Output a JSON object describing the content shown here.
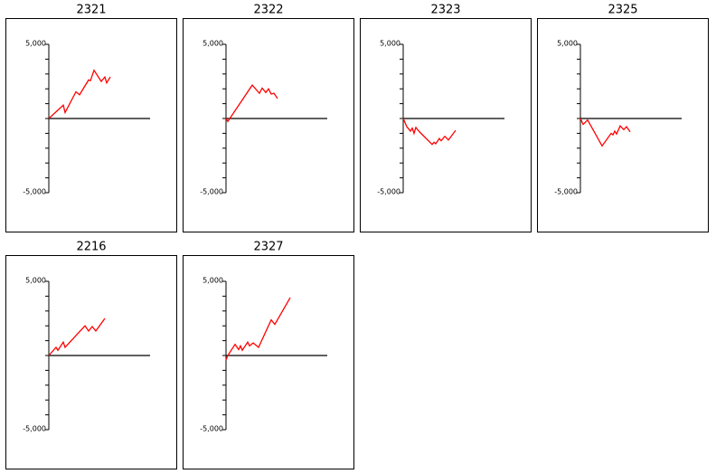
{
  "chart_data": [
    {
      "type": "line",
      "title": "2321",
      "xlim": [
        0,
        112
      ],
      "ylim": [
        -5000,
        5000
      ],
      "yticks": [
        {
          "value": -5000,
          "label": "-5,000"
        },
        {
          "value": 5000,
          "label": "5,000"
        }
      ],
      "yminor_ticks": [
        -4000,
        -3000,
        -2000,
        -1000,
        0,
        1000,
        2000,
        3000,
        4000
      ],
      "series": [
        {
          "color": "#ff0000",
          "x": [
            0,
            16,
            18,
            30,
            34,
            44,
            46,
            50,
            58,
            62,
            64,
            68
          ],
          "values": [
            0,
            900,
            400,
            1800,
            1600,
            2600,
            2550,
            3250,
            2500,
            2800,
            2400,
            2800
          ]
        }
      ]
    },
    {
      "type": "line",
      "title": "2322",
      "xlim": [
        0,
        112
      ],
      "ylim": [
        -5000,
        5000
      ],
      "yticks": [
        {
          "value": -5000,
          "label": "-5,000"
        },
        {
          "value": 5000,
          "label": "5,000"
        }
      ],
      "yminor_ticks": [
        -4000,
        -3000,
        -2000,
        -1000,
        0,
        1000,
        2000,
        3000,
        4000
      ],
      "series": [
        {
          "color": "#ff0000",
          "x": [
            0,
            2,
            29,
            37,
            40,
            44,
            47,
            50,
            53,
            57
          ],
          "values": [
            0,
            -200,
            2250,
            1700,
            2050,
            1750,
            2000,
            1650,
            1700,
            1350
          ]
        }
      ]
    },
    {
      "type": "line",
      "title": "2323",
      "xlim": [
        0,
        112
      ],
      "ylim": [
        -5000,
        5000
      ],
      "yticks": [
        {
          "value": -5000,
          "label": "-5,000"
        },
        {
          "value": 5000,
          "label": "5,000"
        }
      ],
      "yminor_ticks": [
        -4000,
        -3000,
        -2000,
        -1000,
        0,
        1000,
        2000,
        3000,
        4000
      ],
      "series": [
        {
          "color": "#ff0000",
          "x": [
            0,
            4,
            8,
            10,
            12,
            14,
            18,
            32,
            34,
            36,
            40,
            42,
            46,
            50,
            58
          ],
          "values": [
            0,
            -550,
            -850,
            -650,
            -1000,
            -600,
            -900,
            -1750,
            -1600,
            -1700,
            -1350,
            -1500,
            -1200,
            -1450,
            -800
          ]
        }
      ]
    },
    {
      "type": "line",
      "title": "2325",
      "xlim": [
        0,
        112
      ],
      "ylim": [
        -5000,
        5000
      ],
      "yticks": [
        {
          "value": -5000,
          "label": "-5,000"
        },
        {
          "value": 5000,
          "label": "5,000"
        }
      ],
      "yminor_ticks": [
        -4000,
        -3000,
        -2000,
        -1000,
        0,
        1000,
        2000,
        3000,
        4000
      ],
      "series": [
        {
          "color": "#ff0000",
          "x": [
            0,
            3,
            8,
            24,
            34,
            36,
            38,
            40,
            44,
            48,
            51,
            55
          ],
          "values": [
            0,
            -400,
            -100,
            -1850,
            -1000,
            -1100,
            -850,
            -1050,
            -500,
            -750,
            -550,
            -900
          ]
        }
      ]
    },
    {
      "type": "line",
      "title": "2216",
      "xlim": [
        0,
        112
      ],
      "ylim": [
        -5000,
        5000
      ],
      "yticks": [
        {
          "value": -5000,
          "label": "-5,000"
        },
        {
          "value": 5000,
          "label": "5,000"
        }
      ],
      "yminor_ticks": [
        -4000,
        -3000,
        -2000,
        -1000,
        0,
        1000,
        2000,
        3000,
        4000
      ],
      "series": [
        {
          "color": "#ff0000",
          "x": [
            0,
            8,
            10,
            16,
            18,
            40,
            44,
            48,
            52,
            62
          ],
          "values": [
            0,
            550,
            350,
            900,
            550,
            2000,
            1650,
            1950,
            1650,
            2500
          ]
        }
      ]
    },
    {
      "type": "line",
      "title": "2327",
      "xlim": [
        0,
        112
      ],
      "ylim": [
        -5000,
        5000
      ],
      "yticks": [
        {
          "value": -5000,
          "label": "-5,000"
        },
        {
          "value": 5000,
          "label": "5,000"
        }
      ],
      "yminor_ticks": [
        -4000,
        -3000,
        -2000,
        -1000,
        0,
        1000,
        2000,
        3000,
        4000
      ],
      "series": [
        {
          "color": "#ff0000",
          "x": [
            0,
            2,
            10,
            14,
            16,
            18,
            24,
            26,
            30,
            36,
            50,
            54,
            71
          ],
          "values": [
            -300,
            0,
            750,
            400,
            650,
            350,
            900,
            650,
            850,
            550,
            2400,
            2100,
            3900
          ]
        }
      ]
    }
  ]
}
